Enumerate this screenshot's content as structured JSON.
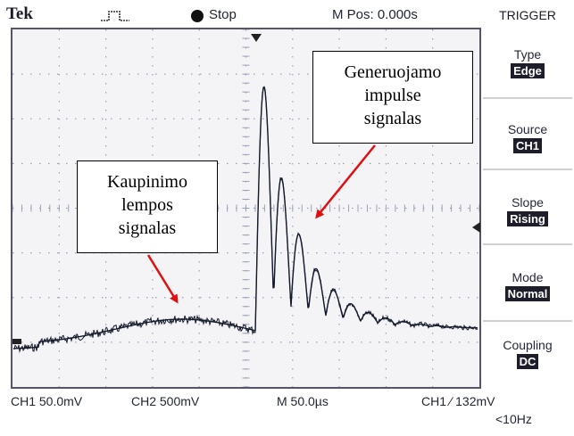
{
  "header": {
    "brand": "Tek",
    "status": "Stop",
    "m_pos": "M Pos: 0.000s",
    "menu_title": "TRIGGER"
  },
  "menu": [
    {
      "label": "Type",
      "value": "Edge"
    },
    {
      "label": "Source",
      "value": "CH1"
    },
    {
      "label": "Slope",
      "value": "Rising"
    },
    {
      "label": "Mode",
      "value": "Normal"
    },
    {
      "label": "Coupling",
      "value": "DC"
    }
  ],
  "footer": {
    "ch1_scale": "CH1  50.0mV",
    "ch2_scale": "CH2  500mV",
    "timebase": "M 50.0µs",
    "trigger": "CH1 ∕  132mV",
    "freq": "<10Hz"
  },
  "callouts": {
    "generated_line1": "Generuojamo",
    "generated_line2": "impulse",
    "generated_line3": "signalas",
    "lamp_line1": "Kaupinimo",
    "lamp_line2": "lempos",
    "lamp_line3": "signalas"
  },
  "colors": {
    "trace": "#141a2a",
    "screen_bg": "#f4f4f7",
    "grid": "#9aa0b4",
    "arrow": "#e01010"
  },
  "icons": [
    "pulse-icon",
    "stop-dot-icon",
    "trigger-position-icon",
    "trigger-level-icon",
    "ground-marker-icon"
  ]
}
